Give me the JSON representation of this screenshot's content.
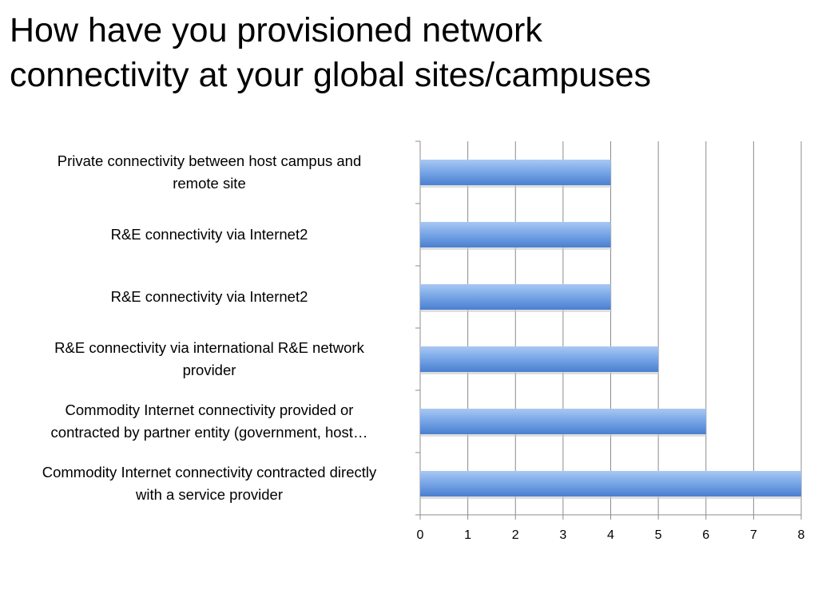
{
  "slide": {
    "title_lines": [
      "How have you provisioned network",
      "connectivity at your global sites/campuses"
    ]
  },
  "chart_data": {
    "type": "bar",
    "orientation": "horizontal",
    "categories": [
      [
        "Private connectivity between host campus and",
        "remote site"
      ],
      [
        "R&E connectivity via Internet2"
      ],
      [
        "R&E connectivity via Internet2"
      ],
      [
        "R&E connectivity via international R&E network",
        "provider"
      ],
      [
        "Commodity Internet connectivity provided or",
        "contracted by partner entity (government, host…"
      ],
      [
        "Commodity Internet connectivity contracted directly",
        "with a service provider"
      ]
    ],
    "values": [
      4,
      4,
      4,
      5,
      6,
      8
    ],
    "xlim": [
      0,
      8
    ],
    "x_ticks": [
      "0",
      "1",
      "2",
      "3",
      "4",
      "5",
      "6",
      "7",
      "8"
    ],
    "grid": "vertical",
    "legend": "none",
    "bar_color": "#5b8fd9"
  }
}
